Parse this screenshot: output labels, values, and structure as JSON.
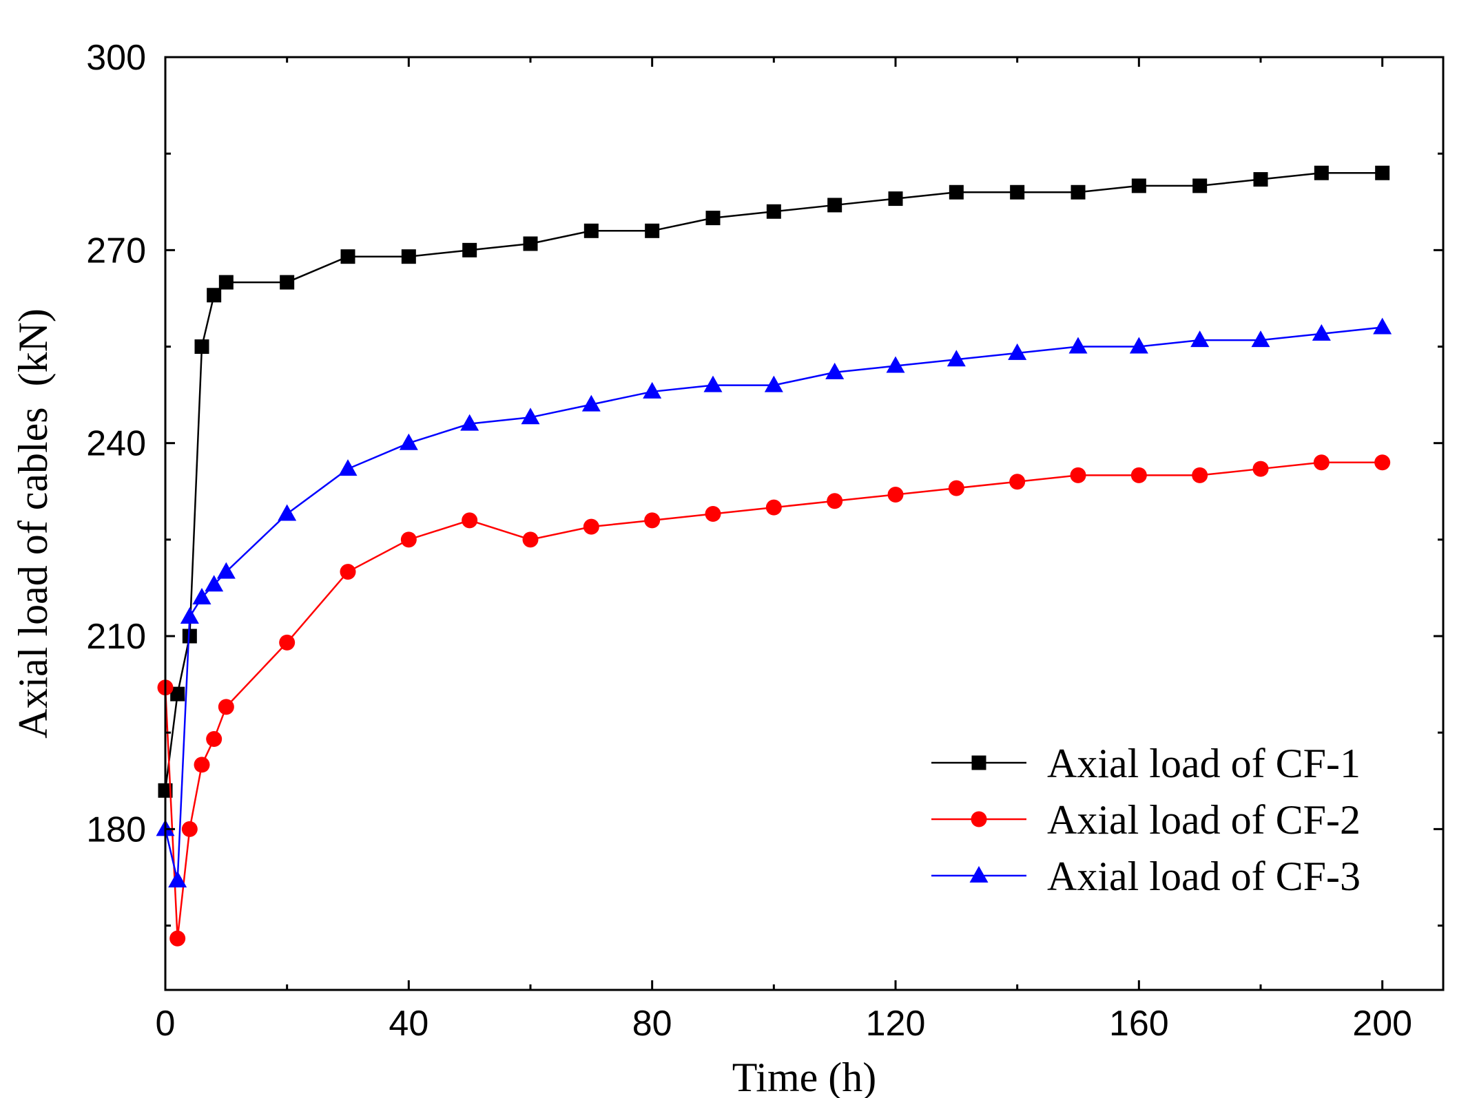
{
  "chart_data": {
    "type": "line",
    "title": "",
    "xlabel": "Time (h)",
    "ylabel": "Axial load of cables  (kN)",
    "xlim": [
      0,
      210
    ],
    "ylim": [
      155,
      300
    ],
    "x_ticks": [
      0,
      40,
      80,
      120,
      160,
      200
    ],
    "x_minor_ticks": [
      20,
      60,
      100,
      140,
      180
    ],
    "y_ticks": [
      180,
      210,
      240,
      270,
      300
    ],
    "y_minor_ticks": [
      165,
      195,
      225,
      255,
      285
    ],
    "grid": false,
    "legend_position": "bottom-right",
    "series": [
      {
        "name": "Axial load of CF-1",
        "color": "#000000",
        "marker": "square",
        "x": [
          0,
          2,
          4,
          6,
          8,
          10,
          20,
          30,
          40,
          50,
          60,
          70,
          80,
          90,
          100,
          110,
          120,
          130,
          140,
          150,
          160,
          170,
          180,
          190,
          200
        ],
        "values": [
          186,
          201,
          210,
          255,
          263,
          265,
          265,
          269,
          269,
          270,
          271,
          273,
          273,
          275,
          276,
          277,
          278,
          279,
          279,
          279,
          280,
          280,
          281,
          282,
          282
        ]
      },
      {
        "name": "Axial load of CF-2",
        "color": "#ff0000",
        "marker": "circle",
        "x": [
          0,
          2,
          4,
          6,
          8,
          10,
          20,
          30,
          40,
          50,
          60,
          70,
          80,
          90,
          100,
          110,
          120,
          130,
          140,
          150,
          160,
          170,
          180,
          190,
          200
        ],
        "values": [
          202,
          163,
          180,
          190,
          194,
          199,
          209,
          220,
          225,
          228,
          225,
          227,
          228,
          229,
          230,
          231,
          232,
          233,
          234,
          235,
          235,
          235,
          236,
          237,
          237
        ]
      },
      {
        "name": "Axial load of CF-3",
        "color": "#0000ff",
        "marker": "triangle",
        "x": [
          0,
          2,
          4,
          6,
          8,
          10,
          20,
          30,
          40,
          50,
          60,
          70,
          80,
          90,
          100,
          110,
          120,
          130,
          140,
          150,
          160,
          170,
          180,
          190,
          200
        ],
        "values": [
          180,
          172,
          213,
          216,
          218,
          220,
          229,
          236,
          240,
          243,
          244,
          246,
          248,
          249,
          249,
          251,
          252,
          253,
          254,
          255,
          255,
          256,
          256,
          257,
          258
        ]
      }
    ]
  }
}
